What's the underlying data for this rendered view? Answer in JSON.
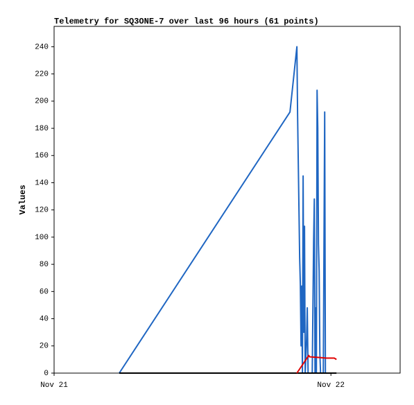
{
  "chart_data": {
    "type": "line",
    "title": "Telemetry for SQ3ONE-7 over last 96 hours (61 points)",
    "ylabel": "Values",
    "xlim": [
      0,
      30
    ],
    "xticks": [
      {
        "value": 0,
        "label": "Nov 21"
      },
      {
        "value": 24,
        "label": "Nov 22"
      }
    ],
    "ylim": [
      0,
      255
    ],
    "yticks": [
      0,
      20,
      40,
      60,
      80,
      100,
      120,
      140,
      160,
      180,
      200,
      220,
      240
    ],
    "series": [
      {
        "color": "#1f66c2",
        "x": [
          5.65,
          20.45,
          21.05,
          21.11,
          21.17,
          21.23,
          21.29,
          21.35,
          21.41,
          21.47,
          21.53,
          21.59,
          21.65,
          21.71,
          21.77,
          21.89,
          21.95,
          22.02,
          22.14,
          22.38,
          22.44,
          22.5,
          22.56,
          22.62,
          22.68,
          22.74,
          22.8,
          22.86,
          22.92,
          22.98,
          23.04,
          23.1,
          23.34,
          23.4,
          23.46,
          23.52
        ],
        "values": [
          0,
          192,
          240,
          190,
          155,
          120,
          85,
          65,
          20,
          64,
          0,
          145,
          30,
          108,
          0,
          25,
          48,
          0,
          0,
          0,
          48,
          97,
          128,
          0,
          48,
          0,
          208,
          180,
          95,
          75,
          15,
          0,
          0,
          97,
          192,
          0
        ]
      },
      {
        "color": "#000000",
        "x": [
          5.65,
          24.48
        ],
        "values": [
          0,
          0
        ]
      },
      {
        "color": "#e00000",
        "x": [
          21.05,
          22.08,
          22.14,
          22.98,
          23.58,
          24.3,
          24.48
        ],
        "values": [
          0,
          13,
          12,
          11.5,
          11,
          11,
          10
        ]
      }
    ]
  }
}
